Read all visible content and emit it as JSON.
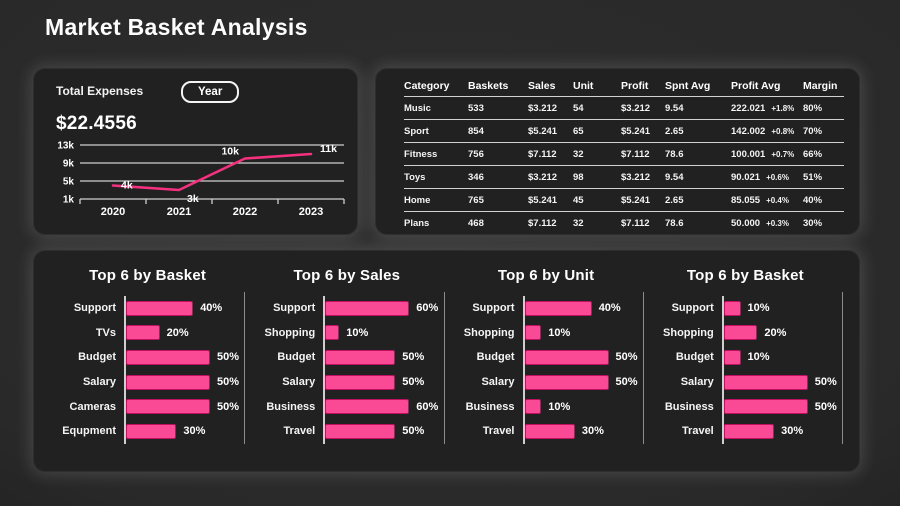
{
  "page": {
    "title": "Market Basket Analysis"
  },
  "colors": {
    "accent": "#F5317F",
    "bar_fill": "#FA4A95",
    "bar_border": "#C01060",
    "grid": "#CFCFCF",
    "card_bg": "#212121"
  },
  "expenses": {
    "label": "Total Expenses",
    "period_button": "Year",
    "total": "$22.4556"
  },
  "table": {
    "headers": [
      "Category",
      "Baskets",
      "Sales",
      "Unit",
      "Profit",
      "Spnt Avg",
      "Profit Avg",
      "Margin"
    ],
    "rows": [
      {
        "category": "Music",
        "baskets": "533",
        "sales": "$3.212",
        "unit": "54",
        "profit": "$3.212",
        "spnt_avg": "9.54",
        "profit_avg": "222.021",
        "profit_delta": "+1.8%",
        "margin": "80%"
      },
      {
        "category": "Sport",
        "baskets": "854",
        "sales": "$5.241",
        "unit": "65",
        "profit": "$5.241",
        "spnt_avg": "2.65",
        "profit_avg": "142.002",
        "profit_delta": "+0.8%",
        "margin": "70%"
      },
      {
        "category": "Fitness",
        "baskets": "756",
        "sales": "$7.112",
        "unit": "32",
        "profit": "$7.112",
        "spnt_avg": "78.6",
        "profit_avg": "100.001",
        "profit_delta": "+0.7%",
        "margin": "66%"
      },
      {
        "category": "Toys",
        "baskets": "346",
        "sales": "$3.212",
        "unit": "98",
        "profit": "$3.212",
        "spnt_avg": "9.54",
        "profit_avg": "90.021",
        "profit_delta": "+0.6%",
        "margin": "51%"
      },
      {
        "category": "Home",
        "baskets": "765",
        "sales": "$5.241",
        "unit": "45",
        "profit": "$5.241",
        "spnt_avg": "2.65",
        "profit_avg": "85.055",
        "profit_delta": "+0.4%",
        "margin": "40%"
      },
      {
        "category": "Plans",
        "baskets": "468",
        "sales": "$7.112",
        "unit": "32",
        "profit": "$7.112",
        "spnt_avg": "78.6",
        "profit_avg": "50.000",
        "profit_delta": "+0.3%",
        "margin": "30%"
      }
    ]
  },
  "chart_data": [
    {
      "type": "line",
      "title": "Total Expenses",
      "x": [
        "2020",
        "2021",
        "2022",
        "2023"
      ],
      "values": [
        4,
        3,
        10,
        11
      ],
      "unit": "k",
      "point_labels": [
        "4k",
        "3k",
        "10k",
        "11k"
      ],
      "y_ticks": [
        13,
        9,
        5,
        1
      ],
      "y_tick_labels": [
        "13k",
        "9k",
        "5k",
        "1k"
      ],
      "ylim": [
        1,
        13
      ],
      "grid": "horizontal",
      "line_color": "#F5317F"
    },
    {
      "type": "bar",
      "title": "Top 6 by Basket",
      "categories": [
        "Support",
        "TVs",
        "Budget",
        "Salary",
        "Cameras",
        "Equpment"
      ],
      "values": [
        40,
        20,
        50,
        50,
        50,
        30
      ],
      "value_suffix": "%"
    },
    {
      "type": "bar",
      "title": "Top 6 by Sales",
      "categories": [
        "Support",
        "Shopping",
        "Budget",
        "Salary",
        "Business",
        "Travel"
      ],
      "values": [
        60,
        10,
        50,
        50,
        60,
        50
      ],
      "value_suffix": "%"
    },
    {
      "type": "bar",
      "title": "Top 6 by Unit",
      "categories": [
        "Support",
        "Shopping",
        "Budget",
        "Salary",
        "Business",
        "Travel"
      ],
      "values": [
        40,
        10,
        50,
        50,
        10,
        30
      ],
      "value_suffix": "%"
    },
    {
      "type": "bar",
      "title": "Top 6 by Basket",
      "categories": [
        "Support",
        "Shopping",
        "Budget",
        "Salary",
        "Business",
        "Travel"
      ],
      "values": [
        10,
        20,
        10,
        50,
        50,
        30
      ],
      "value_suffix": "%"
    }
  ]
}
